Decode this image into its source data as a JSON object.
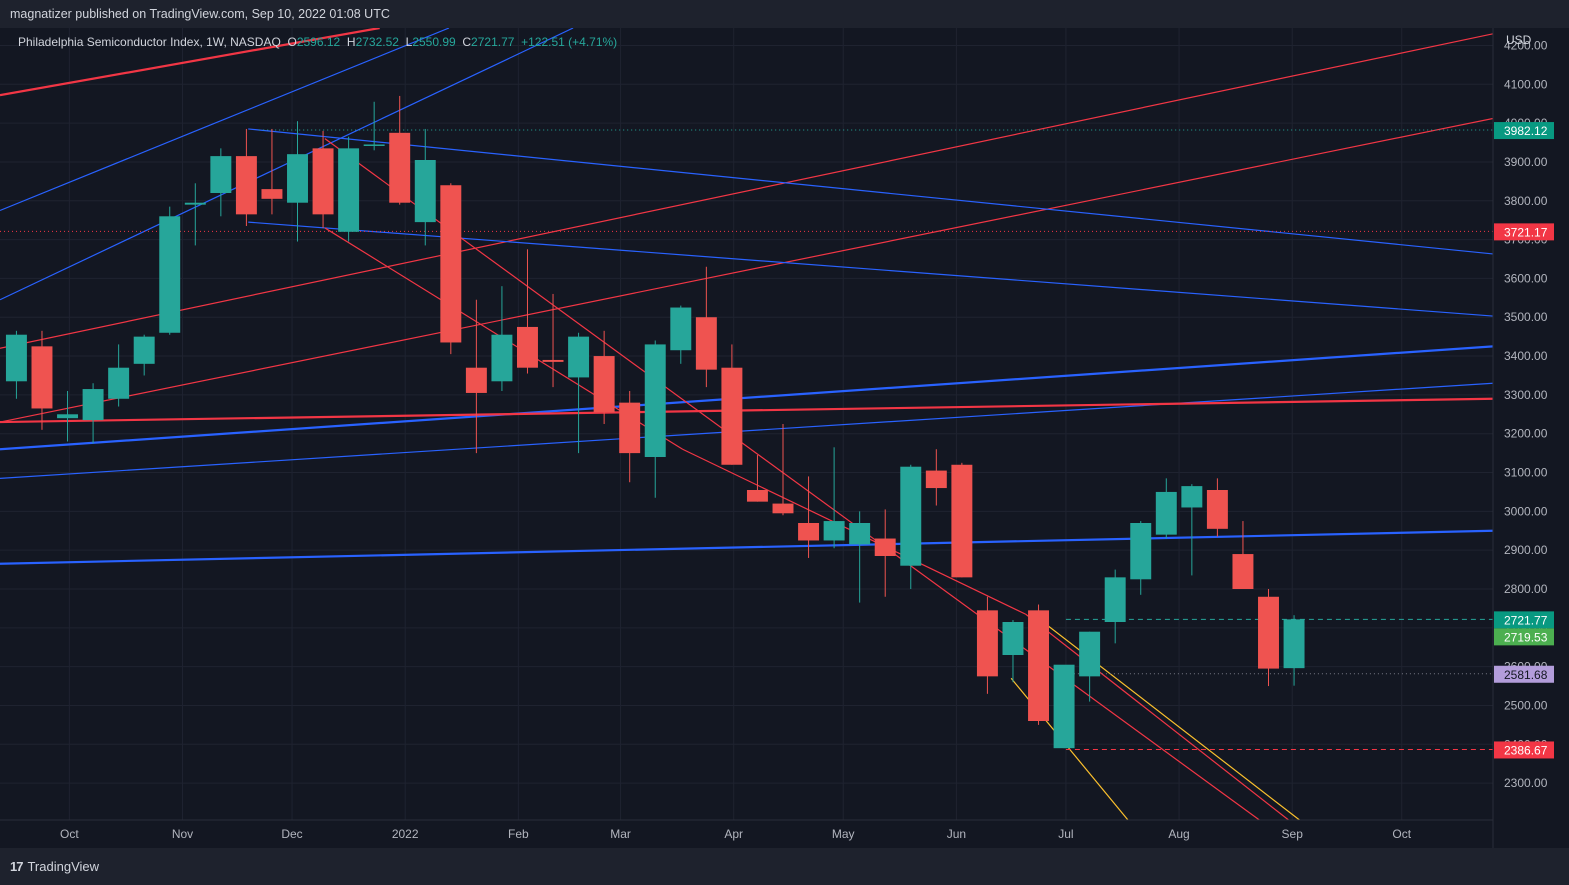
{
  "header": {
    "publisher_text": "magnatizer published on TradingView.com, Sep 10, 2022 01:08 UTC"
  },
  "legend": {
    "symbol_text": "Philadelphia Semiconductor Index, 1W, NASDAQ",
    "open_label": "O",
    "open_value": "2596.12",
    "high_label": "H",
    "high_value": "2732.52",
    "low_label": "L",
    "low_value": "2550.99",
    "close_label": "C",
    "close_value": "2721.77",
    "change_value": "+122.51 (+4.71%)"
  },
  "currency_label": "USD",
  "footer": {
    "brand_logo": "17",
    "brand_text": "TradingView"
  },
  "colors": {
    "background": "#131722",
    "bull": "#26a69a",
    "bear": "#ef5350",
    "blue_line": "#2962ff",
    "red_line": "#f23645",
    "yellow_line": "#fbc02d"
  },
  "chart_data": {
    "type": "candlestick",
    "title": "Philadelphia Semiconductor Index, 1W, NASDAQ",
    "y_axis_ticks": [
      2300,
      2400,
      2500,
      2600,
      2700,
      2800,
      2900,
      3000,
      3100,
      3200,
      3300,
      3400,
      3500,
      3600,
      3700,
      3800,
      3900,
      4000,
      4100,
      4200
    ],
    "ylim": [
      2205,
      4245
    ],
    "x_axis_ticks": [
      {
        "label": "Oct",
        "date": "2021-10-01"
      },
      {
        "label": "Nov",
        "date": "2021-11-01"
      },
      {
        "label": "Dec",
        "date": "2021-12-01"
      },
      {
        "label": "2022",
        "date": "2022-01-01"
      },
      {
        "label": "Feb",
        "date": "2022-02-01"
      },
      {
        "label": "Mar",
        "date": "2022-03-01"
      },
      {
        "label": "Apr",
        "date": "2022-04-01"
      },
      {
        "label": "May",
        "date": "2022-05-01"
      },
      {
        "label": "Jun",
        "date": "2022-06-01"
      },
      {
        "label": "Jul",
        "date": "2022-07-01"
      },
      {
        "label": "Aug",
        "date": "2022-08-01"
      },
      {
        "label": "Sep",
        "date": "2022-09-01"
      },
      {
        "label": "Oct",
        "date": "2022-10-01"
      }
    ],
    "xlim": [
      "2021-09-12",
      "2022-10-26"
    ],
    "candles": [
      {
        "date": "2021-09-13",
        "open": 3335,
        "high": 3465,
        "low": 3290,
        "close": 3455
      },
      {
        "date": "2021-09-20",
        "open": 3425,
        "high": 3465,
        "low": 3210,
        "close": 3265
      },
      {
        "date": "2021-09-27",
        "open": 3240,
        "high": 3310,
        "low": 3180,
        "close": 3250
      },
      {
        "date": "2021-10-04",
        "open": 3235,
        "high": 3330,
        "low": 3175,
        "close": 3315
      },
      {
        "date": "2021-10-11",
        "open": 3290,
        "high": 3430,
        "low": 3270,
        "close": 3370
      },
      {
        "date": "2021-10-18",
        "open": 3380,
        "high": 3455,
        "low": 3350,
        "close": 3450
      },
      {
        "date": "2021-10-25",
        "open": 3460,
        "high": 3785,
        "low": 3455,
        "close": 3760
      },
      {
        "date": "2021-11-01",
        "open": 3790,
        "high": 3845,
        "low": 3685,
        "close": 3795
      },
      {
        "date": "2021-11-08",
        "open": 3820,
        "high": 3935,
        "low": 3760,
        "close": 3915
      },
      {
        "date": "2021-11-15",
        "open": 3915,
        "high": 3985,
        "low": 3735,
        "close": 3765
      },
      {
        "date": "2021-11-22",
        "open": 3830,
        "high": 3985,
        "low": 3765,
        "close": 3805
      },
      {
        "date": "2021-11-29",
        "open": 3795,
        "high": 4005,
        "low": 3695,
        "close": 3920
      },
      {
        "date": "2021-12-06",
        "open": 3935,
        "high": 3980,
        "low": 3730,
        "close": 3765
      },
      {
        "date": "2021-12-13",
        "open": 3720,
        "high": 3965,
        "low": 3695,
        "close": 3935
      },
      {
        "date": "2021-12-20",
        "open": 3945,
        "high": 4055,
        "low": 3930,
        "close": 3945
      },
      {
        "date": "2021-12-27",
        "open": 3975,
        "high": 4070,
        "low": 3790,
        "close": 3795
      },
      {
        "date": "2022-01-03",
        "open": 3745,
        "high": 3985,
        "low": 3685,
        "close": 3905
      },
      {
        "date": "2022-01-10",
        "open": 3840,
        "high": 3845,
        "low": 3405,
        "close": 3435
      },
      {
        "date": "2022-01-17",
        "open": 3370,
        "high": 3545,
        "low": 3150,
        "close": 3305
      },
      {
        "date": "2022-01-24",
        "open": 3335,
        "high": 3580,
        "low": 3310,
        "close": 3455
      },
      {
        "date": "2022-01-31",
        "open": 3475,
        "high": 3675,
        "low": 3355,
        "close": 3370
      },
      {
        "date": "2022-02-07",
        "open": 3390,
        "high": 3560,
        "low": 3320,
        "close": 3385
      },
      {
        "date": "2022-02-14",
        "open": 3345,
        "high": 3460,
        "low": 3150,
        "close": 3450
      },
      {
        "date": "2022-02-21",
        "open": 3400,
        "high": 3465,
        "low": 3225,
        "close": 3255
      },
      {
        "date": "2022-02-28",
        "open": 3280,
        "high": 3310,
        "low": 3075,
        "close": 3150
      },
      {
        "date": "2022-03-07",
        "open": 3140,
        "high": 3440,
        "low": 3035,
        "close": 3430
      },
      {
        "date": "2022-03-14",
        "open": 3415,
        "high": 3530,
        "low": 3380,
        "close": 3525
      },
      {
        "date": "2022-03-21",
        "open": 3500,
        "high": 3630,
        "low": 3320,
        "close": 3365
      },
      {
        "date": "2022-03-28",
        "open": 3370,
        "high": 3430,
        "low": 3120,
        "close": 3120
      },
      {
        "date": "2022-04-04",
        "open": 3055,
        "high": 3145,
        "low": 3025,
        "close": 3025
      },
      {
        "date": "2022-04-11",
        "open": 3020,
        "high": 3225,
        "low": 2990,
        "close": 2995
      },
      {
        "date": "2022-04-18",
        "open": 2970,
        "high": 3090,
        "low": 2880,
        "close": 2925
      },
      {
        "date": "2022-04-25",
        "open": 2925,
        "high": 3165,
        "low": 2905,
        "close": 2975
      },
      {
        "date": "2022-05-02",
        "open": 2915,
        "high": 3000,
        "low": 2765,
        "close": 2970
      },
      {
        "date": "2022-05-09",
        "open": 2930,
        "high": 3005,
        "low": 2780,
        "close": 2885
      },
      {
        "date": "2022-05-16",
        "open": 2860,
        "high": 3120,
        "low": 2800,
        "close": 3115
      },
      {
        "date": "2022-05-23",
        "open": 3105,
        "high": 3160,
        "low": 3015,
        "close": 3060
      },
      {
        "date": "2022-05-30",
        "open": 3120,
        "high": 3125,
        "low": 2830,
        "close": 2830
      },
      {
        "date": "2022-06-06",
        "open": 2745,
        "high": 2780,
        "low": 2530,
        "close": 2575
      },
      {
        "date": "2022-06-13",
        "open": 2630,
        "high": 2720,
        "low": 2560,
        "close": 2715
      },
      {
        "date": "2022-06-20",
        "open": 2745,
        "high": 2760,
        "low": 2450,
        "close": 2460
      },
      {
        "date": "2022-06-27",
        "open": 2390,
        "high": 2600,
        "low": 2390,
        "close": 2605
      },
      {
        "date": "2022-07-04",
        "open": 2575,
        "high": 2690,
        "low": 2510,
        "close": 2690
      },
      {
        "date": "2022-07-11",
        "open": 2715,
        "high": 2850,
        "low": 2660,
        "close": 2830
      },
      {
        "date": "2022-07-18",
        "open": 2825,
        "high": 2975,
        "low": 2785,
        "close": 2970
      },
      {
        "date": "2022-07-25",
        "open": 2940,
        "high": 3085,
        "low": 2930,
        "close": 3050
      },
      {
        "date": "2022-08-01",
        "open": 3010,
        "high": 3070,
        "low": 2835,
        "close": 3065
      },
      {
        "date": "2022-08-08",
        "open": 3055,
        "high": 3085,
        "low": 2935,
        "close": 2955
      },
      {
        "date": "2022-08-15",
        "open": 2890,
        "high": 2975,
        "low": 2800,
        "close": 2800
      },
      {
        "date": "2022-08-22",
        "open": 2780,
        "high": 2800,
        "low": 2550,
        "close": 2595
      },
      {
        "date": "2022-08-29",
        "open": 2596.12,
        "high": 2732.52,
        "low": 2550.99,
        "close": 2721.77
      }
    ],
    "price_labels": [
      {
        "text": "3982.12",
        "value": 3982.12,
        "color": "#089981",
        "line_color": "#26a69a",
        "line_style": "dotted",
        "line_from": "2021-11-22"
      },
      {
        "text": "3721.17",
        "value": 3721.17,
        "color": "#f23645",
        "line_color": "#f23645",
        "line_style": "dotted",
        "line_from": "2021-09-12"
      },
      {
        "text": "2721.77",
        "value": 2721.77,
        "color": "#089981",
        "line_color": "#26a69a",
        "line_style": "dashed",
        "line_from": "2022-07-01"
      },
      {
        "text": "2719.53",
        "value": 2719.53,
        "color": "#4caf50",
        "line_color": null,
        "line_style": "none",
        "line_from": null
      },
      {
        "text": "2581.68",
        "value": 2581.68,
        "color": "#b39ddb",
        "line_color": "#787b86",
        "line_style": "dotted",
        "line_from": "2022-07-01"
      },
      {
        "text": "2386.67",
        "value": 2386.67,
        "color": "#f23645",
        "line_color": "#f23645",
        "line_style": "dashed",
        "line_from": "2022-07-01"
      }
    ],
    "trendlines": [
      {
        "color": "#f23645",
        "width": 2.2,
        "p1": [
          "2021-09-12",
          4072
        ],
        "p2": [
          "2021-12-25",
          4245
        ]
      },
      {
        "color": "#2962ff",
        "width": 1.2,
        "p1": [
          "2021-09-12",
          3775
        ],
        "p2": [
          "2022-01-13",
          4245
        ]
      },
      {
        "color": "#2962ff",
        "width": 1.2,
        "p1": [
          "2021-09-12",
          3545
        ],
        "p2": [
          "2022-02-16",
          4245
        ]
      },
      {
        "color": "#f23645",
        "width": 1.2,
        "p1": [
          "2021-09-12",
          3420
        ],
        "p2": [
          "2022-10-26",
          4230
        ]
      },
      {
        "color": "#f23645",
        "width": 1.2,
        "p1": [
          "2021-09-12",
          3230
        ],
        "p2": [
          "2022-10-26",
          4012
        ]
      },
      {
        "color": "#2962ff",
        "width": 1.2,
        "p1": [
          "2021-11-19",
          3985
        ],
        "p2": [
          "2022-10-26",
          3663
        ]
      },
      {
        "color": "#2962ff",
        "width": 1.2,
        "p1": [
          "2021-11-19",
          3745
        ],
        "p2": [
          "2022-10-26",
          3503
        ]
      },
      {
        "color": "#2962ff",
        "width": 2.2,
        "p1": [
          "2021-09-12",
          3160
        ],
        "p2": [
          "2022-10-26",
          3425
        ]
      },
      {
        "color": "#2962ff",
        "width": 1.2,
        "p1": [
          "2021-09-12",
          3085
        ],
        "p2": [
          "2022-10-26",
          3330
        ]
      },
      {
        "color": "#f23645",
        "width": 2.2,
        "p1": [
          "2021-09-12",
          3230
        ],
        "p2": [
          "2022-10-26",
          3290
        ]
      },
      {
        "color": "#2962ff",
        "width": 2.2,
        "p1": [
          "2021-09-12",
          2865
        ],
        "p2": [
          "2022-10-26",
          2950
        ]
      },
      {
        "color": "#f23645",
        "width": 1.2,
        "p1": [
          "2021-12-10",
          3960
        ],
        "p2": [
          "2022-08-23",
          2205
        ]
      },
      {
        "color": "#f23645",
        "width": 1.2,
        "p1": [
          "2021-12-10",
          3730
        ],
        "p2": [
          "2022-03-18",
          3160
        ]
      },
      {
        "color": "#f23645",
        "width": 1.2,
        "p1": [
          "2022-03-18",
          3160
        ],
        "p2": [
          "2022-06-20",
          2735
        ]
      },
      {
        "color": "#f23645",
        "width": 1.2,
        "p1": [
          "2022-06-20",
          2735
        ],
        "p2": [
          "2022-08-31",
          2205
        ]
      },
      {
        "color": "#fbc02d",
        "width": 1.2,
        "p1": [
          "2022-06-22",
          2735
        ],
        "p2": [
          "2022-09-03",
          2205
        ]
      },
      {
        "color": "#fbc02d",
        "width": 1.2,
        "p1": [
          "2022-06-16",
          2570
        ],
        "p2": [
          "2022-07-18",
          2205
        ]
      }
    ]
  }
}
